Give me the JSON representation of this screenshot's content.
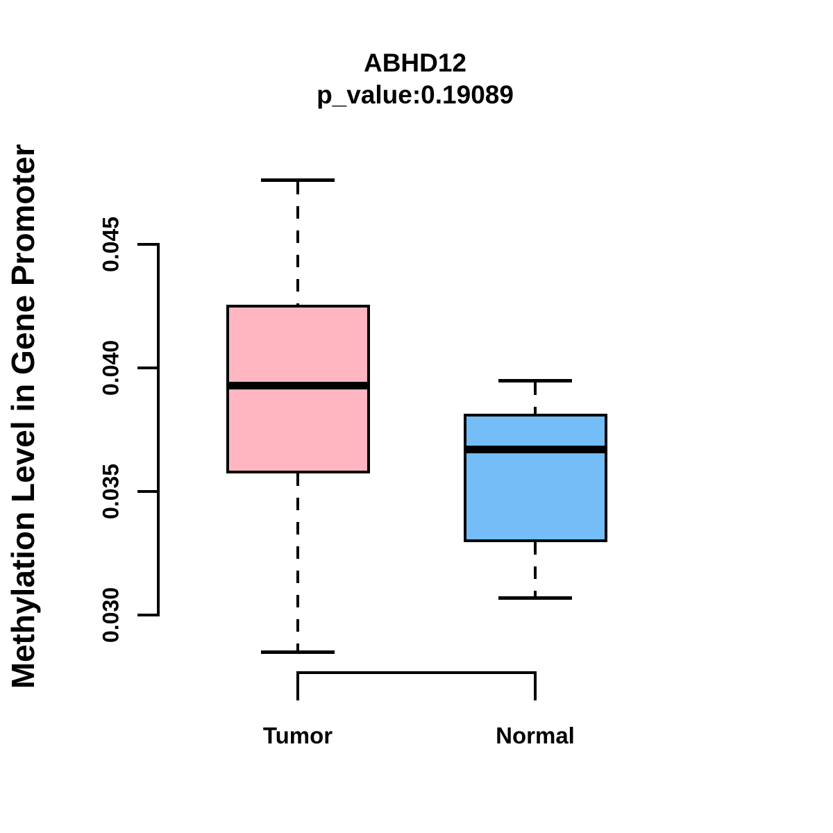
{
  "title": "ABHD12",
  "subtitle": "p_value:0.19089",
  "chart_data": {
    "type": "boxplot",
    "title": "ABHD12",
    "subtitle": "p_value:0.19089",
    "ylabel": "Methylation Level in Gene Promoter",
    "xlabel": "",
    "categories": [
      "Tumor",
      "Normal"
    ],
    "yticks": [
      {
        "value": 0.03,
        "label": "0.030"
      },
      {
        "value": 0.035,
        "label": "0.035"
      },
      {
        "value": 0.04,
        "label": "0.040"
      },
      {
        "value": 0.045,
        "label": "0.045"
      }
    ],
    "ylim": [
      0.0285,
      0.0476
    ],
    "grid": false,
    "legend": false,
    "line_color": "#000000",
    "background_color": "#FFFFFF",
    "series": [
      {
        "name": "Tumor",
        "fill_color": "#FFB6C1",
        "whisker_low": 0.0285,
        "q1": 0.0358,
        "median": 0.0393,
        "q3": 0.0425,
        "whisker_high": 0.0476
      },
      {
        "name": "Normal",
        "fill_color": "#74BDF7",
        "whisker_low": 0.0307,
        "q1": 0.033,
        "median": 0.0367,
        "q3": 0.0381,
        "whisker_high": 0.0395
      }
    ]
  }
}
